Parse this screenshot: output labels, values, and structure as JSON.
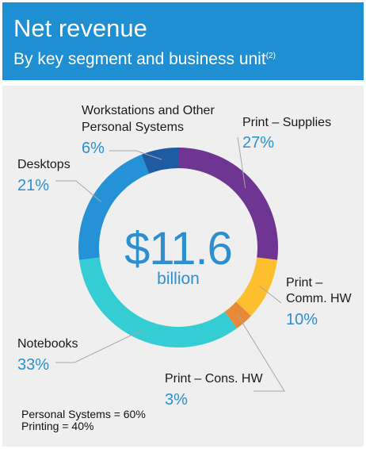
{
  "header": {
    "title": "Net revenue",
    "subtitle": "By key segment and business unit",
    "footnote_ref": "(2)"
  },
  "center": {
    "value": "$11.6",
    "unit": "billion"
  },
  "totals": {
    "personal_systems": "Personal Systems = 60%",
    "printing": "Printing = 40%"
  },
  "chart_data": {
    "type": "pie",
    "title": "Net revenue",
    "subtitle": "By key segment and business unit",
    "total_label": "$11.6 billion",
    "slices": [
      {
        "name": "Print – Supplies",
        "value": 27,
        "pct_label": "27%",
        "color": "#6e3592"
      },
      {
        "name": "Print – Comm. HW",
        "value": 10,
        "pct_label": "10%",
        "color": "#fdbf2d"
      },
      {
        "name": "Print – Cons. HW",
        "value": 3,
        "pct_label": "3%",
        "color": "#e8893a"
      },
      {
        "name": "Notebooks",
        "value": 33,
        "pct_label": "33%",
        "color": "#34cdd3"
      },
      {
        "name": "Desktops",
        "value": 21,
        "pct_label": "21%",
        "color": "#2591d6"
      },
      {
        "name": "Workstations and Other Personal Systems",
        "name_lines": [
          "Workstations and Other",
          "Personal Systems"
        ],
        "value": 6,
        "pct_label": "6%",
        "color": "#1f5ba3"
      }
    ]
  },
  "labels": {
    "print_supplies": {
      "name": "Print – Supplies",
      "pct": "27%"
    },
    "print_comm_hw": {
      "name_line1": "Print –",
      "name_line2": "Comm. HW",
      "pct": "10%"
    },
    "print_cons_hw": {
      "name": "Print – Cons. HW",
      "pct": "3%"
    },
    "notebooks": {
      "name": "Notebooks",
      "pct": "33%"
    },
    "desktops": {
      "name": "Desktops",
      "pct": "21%"
    },
    "workstations": {
      "name_line1": "Workstations and Other",
      "name_line2": "Personal Systems",
      "pct": "6%"
    }
  }
}
